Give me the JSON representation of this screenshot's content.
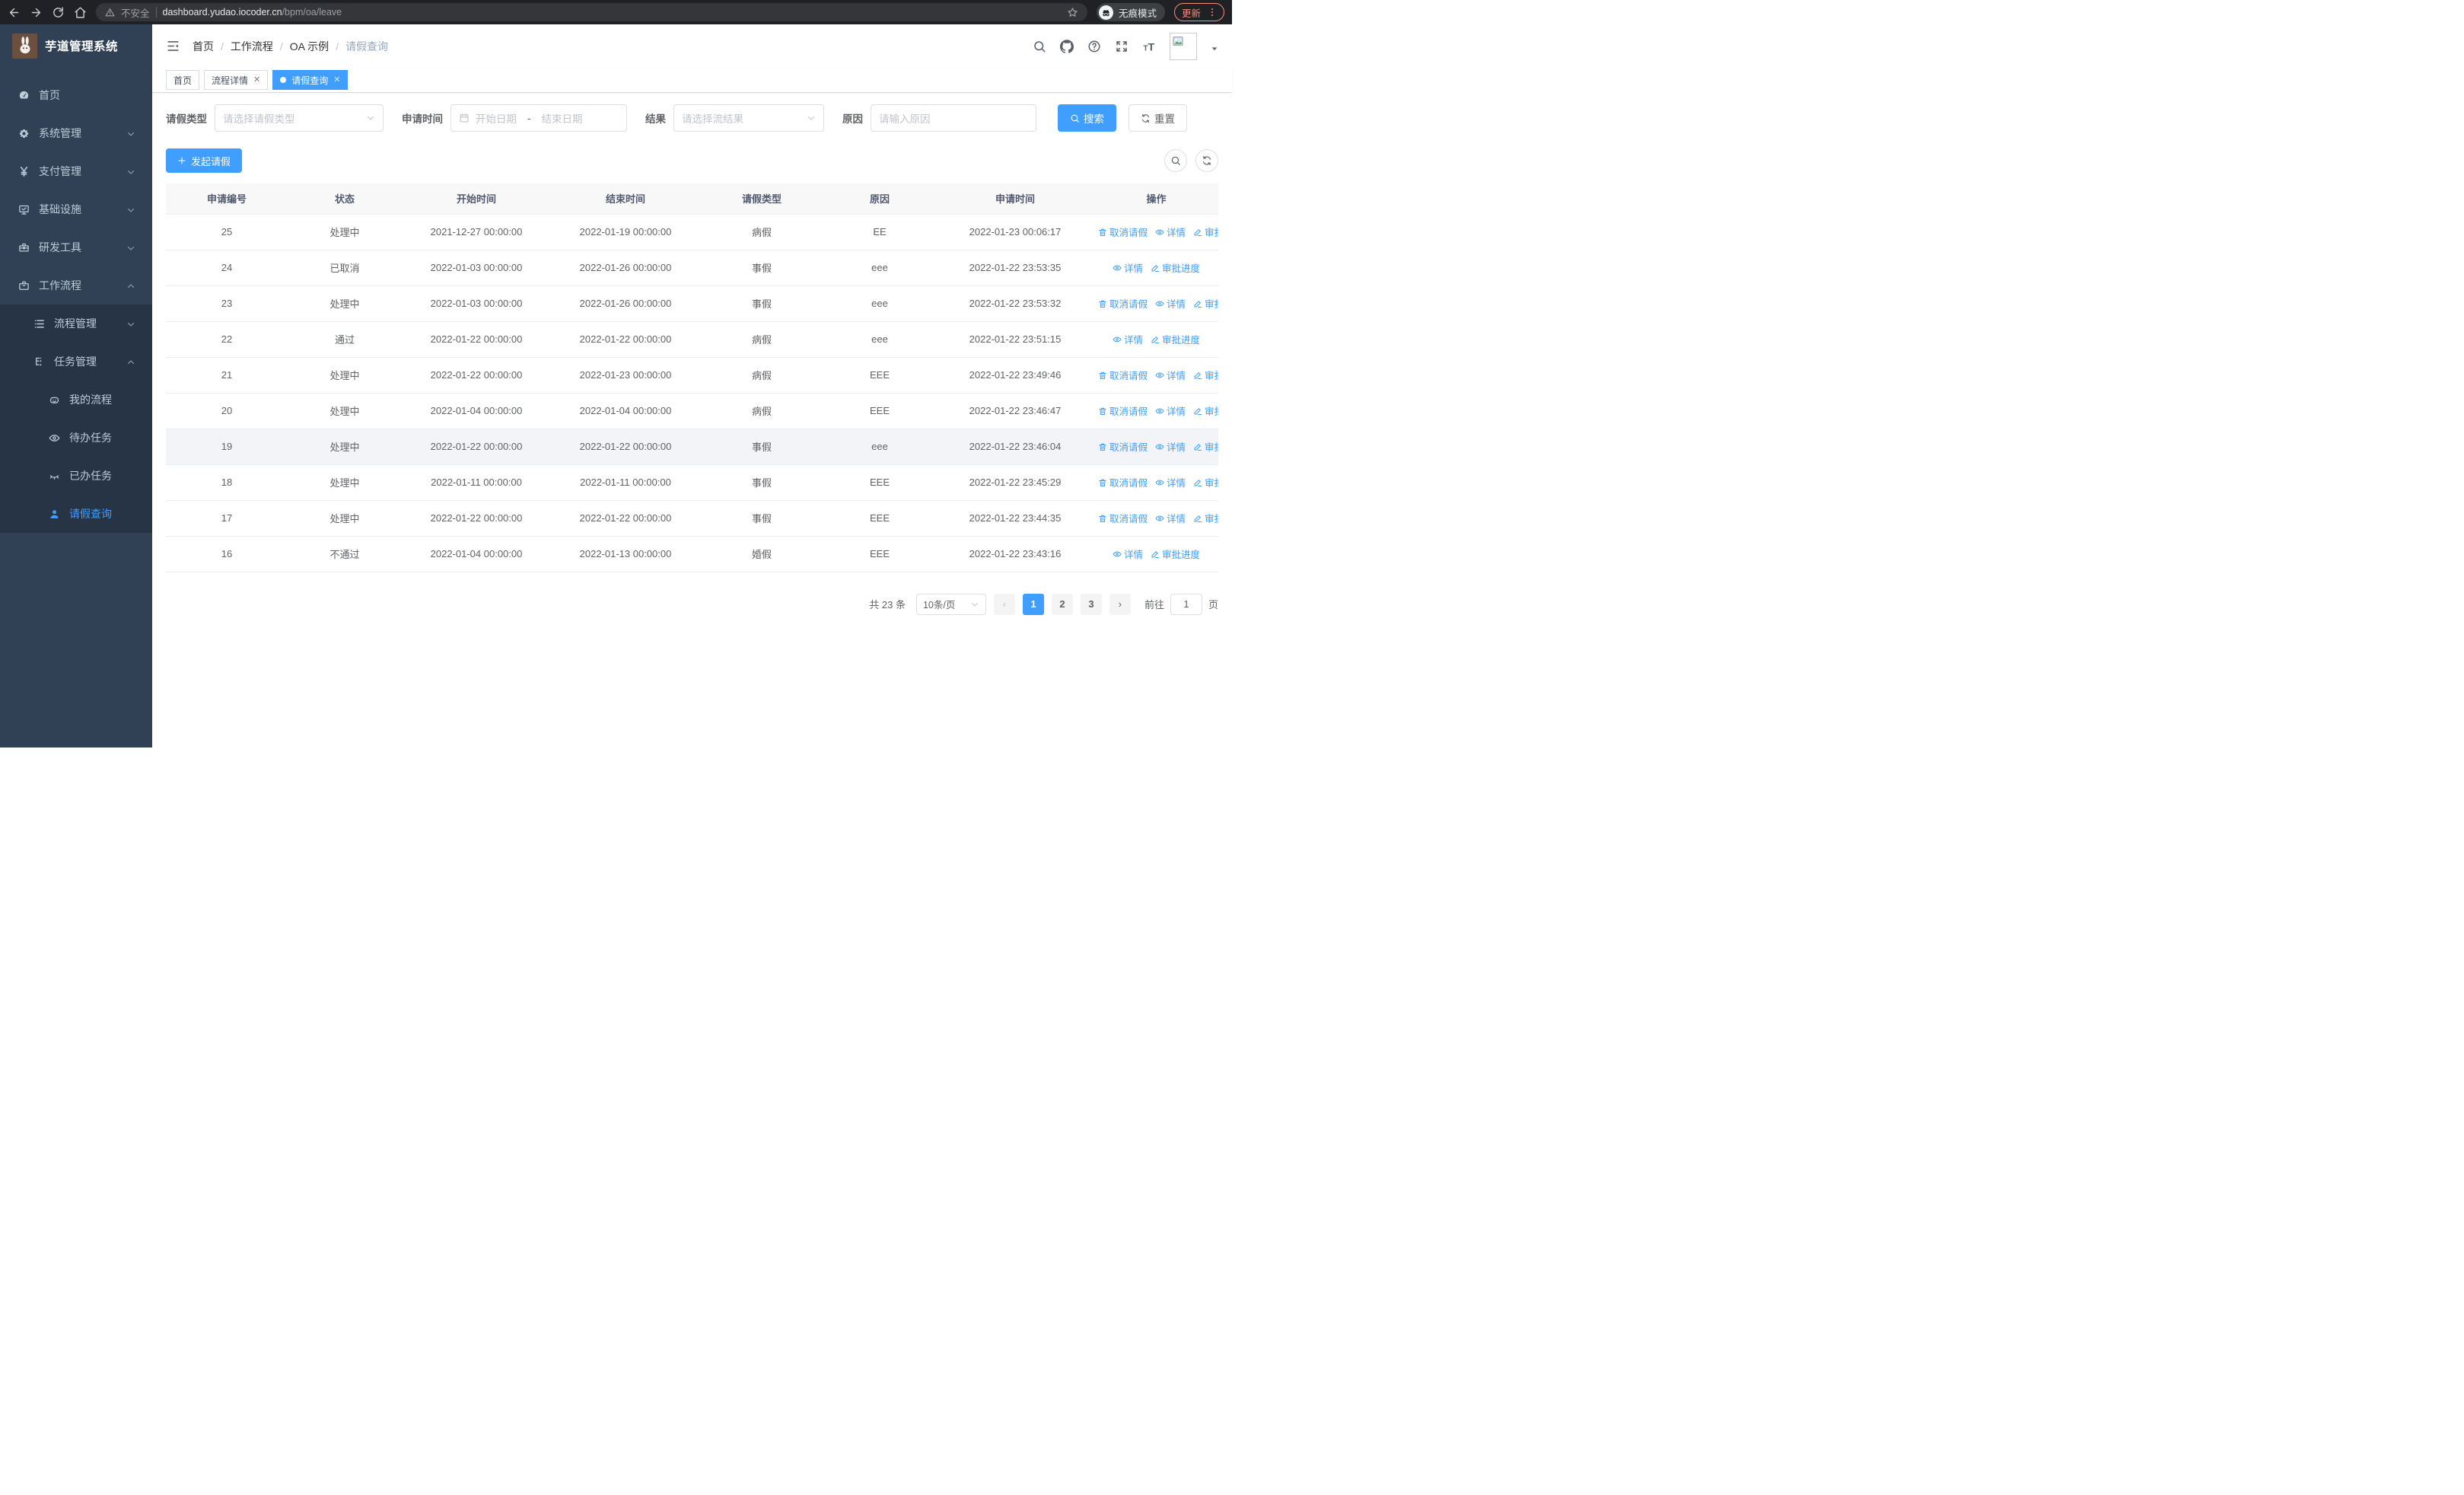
{
  "browser": {
    "security_label": "不安全",
    "url_host": "dashboard.yudao.iocoder.cn",
    "url_path": "/bpm/oa/leave",
    "incognito_label": "无痕模式",
    "update_label": "更新"
  },
  "sidebar": {
    "title": "芋道管理系统",
    "menu": [
      {
        "label": "首页",
        "icon": "dashboard-icon",
        "level": 1
      },
      {
        "label": "系统管理",
        "icon": "gear-icon",
        "level": 1,
        "chevron": "down"
      },
      {
        "label": "支付管理",
        "icon": "yen-icon",
        "level": 1,
        "chevron": "down"
      },
      {
        "label": "基础设施",
        "icon": "monitor-icon",
        "level": 1,
        "chevron": "down"
      },
      {
        "label": "研发工具",
        "icon": "toolbox-icon",
        "level": 1,
        "chevron": "down"
      },
      {
        "label": "工作流程",
        "icon": "briefcase-icon",
        "level": 1,
        "chevron": "up"
      },
      {
        "label": "流程管理",
        "icon": "flow-icon",
        "level": 2,
        "chevron": "down",
        "sub": true
      },
      {
        "label": "任务管理",
        "icon": "tasks-icon",
        "level": 2,
        "chevron": "up",
        "sub": true
      },
      {
        "label": "我的流程",
        "icon": "robot-icon",
        "level": 3,
        "sub": true
      },
      {
        "label": "待办任务",
        "icon": "eye-icon",
        "level": 3,
        "sub": true
      },
      {
        "label": "已办任务",
        "icon": "eye-closed-icon",
        "level": 3,
        "sub": true
      },
      {
        "label": "请假查询",
        "icon": "user-icon",
        "level": 3,
        "sub": true,
        "active": true
      }
    ]
  },
  "breadcrumb": [
    "首页",
    "工作流程",
    "OA 示例",
    "请假查询"
  ],
  "tabs": [
    {
      "label": "首页"
    },
    {
      "label": "流程详情",
      "closable": true
    },
    {
      "label": "请假查询",
      "closable": true,
      "active": true
    }
  ],
  "filters": {
    "leave_type_label": "请假类型",
    "leave_type_placeholder": "请选择请假类型",
    "apply_time_label": "申请时间",
    "start_date_placeholder": "开始日期",
    "date_separator": "-",
    "end_date_placeholder": "结束日期",
    "result_label": "结果",
    "result_placeholder": "请选择流结果",
    "reason_label": "原因",
    "reason_placeholder": "请输入原因",
    "search_label": "搜索",
    "reset_label": "重置"
  },
  "toolbar": {
    "create_label": "发起请假"
  },
  "table": {
    "headers": [
      "申请编号",
      "状态",
      "开始时间",
      "结束时间",
      "请假类型",
      "原因",
      "申请时间",
      "操作"
    ],
    "action_labels": {
      "cancel": "取消请假",
      "detail": "详情",
      "progress": "审批进度"
    },
    "rows": [
      {
        "id": "25",
        "status": "处理中",
        "start": "2021-12-27 00:00:00",
        "end": "2022-01-19 00:00:00",
        "type": "病假",
        "reason": "EE",
        "apply_time": "2022-01-23 00:06:17",
        "actions": [
          "cancel",
          "detail",
          "progress"
        ]
      },
      {
        "id": "24",
        "status": "已取消",
        "start": "2022-01-03 00:00:00",
        "end": "2022-01-26 00:00:00",
        "type": "事假",
        "reason": "eee",
        "apply_time": "2022-01-22 23:53:35",
        "actions": [
          "detail",
          "progress"
        ]
      },
      {
        "id": "23",
        "status": "处理中",
        "start": "2022-01-03 00:00:00",
        "end": "2022-01-26 00:00:00",
        "type": "事假",
        "reason": "eee",
        "apply_time": "2022-01-22 23:53:32",
        "actions": [
          "cancel",
          "detail",
          "progress"
        ]
      },
      {
        "id": "22",
        "status": "通过",
        "start": "2022-01-22 00:00:00",
        "end": "2022-01-22 00:00:00",
        "type": "病假",
        "reason": "eee",
        "apply_time": "2022-01-22 23:51:15",
        "actions": [
          "detail",
          "progress"
        ]
      },
      {
        "id": "21",
        "status": "处理中",
        "start": "2022-01-22 00:00:00",
        "end": "2022-01-23 00:00:00",
        "type": "病假",
        "reason": "EEE",
        "apply_time": "2022-01-22 23:49:46",
        "actions": [
          "cancel",
          "detail",
          "progress"
        ]
      },
      {
        "id": "20",
        "status": "处理中",
        "start": "2022-01-04 00:00:00",
        "end": "2022-01-04 00:00:00",
        "type": "病假",
        "reason": "EEE",
        "apply_time": "2022-01-22 23:46:47",
        "actions": [
          "cancel",
          "detail",
          "progress"
        ]
      },
      {
        "id": "19",
        "status": "处理中",
        "start": "2022-01-22 00:00:00",
        "end": "2022-01-22 00:00:00",
        "type": "事假",
        "reason": "eee",
        "apply_time": "2022-01-22 23:46:04",
        "actions": [
          "cancel",
          "detail",
          "progress"
        ],
        "highlight": true
      },
      {
        "id": "18",
        "status": "处理中",
        "start": "2022-01-11 00:00:00",
        "end": "2022-01-11 00:00:00",
        "type": "事假",
        "reason": "EEE",
        "apply_time": "2022-01-22 23:45:29",
        "actions": [
          "cancel",
          "detail",
          "progress"
        ]
      },
      {
        "id": "17",
        "status": "处理中",
        "start": "2022-01-22 00:00:00",
        "end": "2022-01-22 00:00:00",
        "type": "事假",
        "reason": "EEE",
        "apply_time": "2022-01-22 23:44:35",
        "actions": [
          "cancel",
          "detail",
          "progress"
        ]
      },
      {
        "id": "16",
        "status": "不通过",
        "start": "2022-01-04 00:00:00",
        "end": "2022-01-13 00:00:00",
        "type": "婚假",
        "reason": "EEE",
        "apply_time": "2022-01-22 23:43:16",
        "actions": [
          "detail",
          "progress"
        ]
      }
    ]
  },
  "pagination": {
    "total": "共 23 条",
    "page_size": "10条/页",
    "pages": [
      "1",
      "2",
      "3"
    ],
    "active_page": "1",
    "goto_label": "前往",
    "goto_value": "1",
    "goto_suffix": "页"
  },
  "colors": {
    "accent": "#409eff",
    "sidebar_bg": "#304156",
    "sidebar_submenu_bg": "#263445",
    "update_badge": "#f28b82",
    "table_header_bg": "#f8f8f9"
  }
}
